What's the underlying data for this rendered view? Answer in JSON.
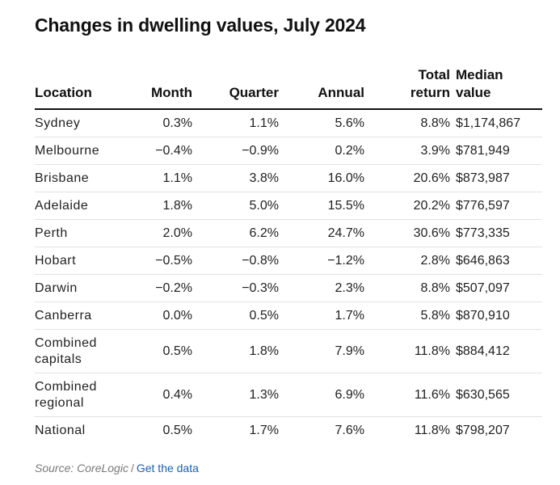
{
  "title": "Changes in dwelling values, July 2024",
  "headers": {
    "location": "Location",
    "month": "Month",
    "quarter": "Quarter",
    "annual": "Annual",
    "total_return": [
      "Total",
      "return"
    ],
    "median_value": [
      "Median",
      "value"
    ]
  },
  "rows": [
    {
      "location": "Sydney",
      "month": "0.3%",
      "quarter": "1.1%",
      "annual": "5.6%",
      "total_return": "8.8%",
      "median_value": "$1,174,867"
    },
    {
      "location": "Melbourne",
      "month": "−0.4%",
      "quarter": "−0.9%",
      "annual": "0.2%",
      "total_return": "3.9%",
      "median_value": "$781,949"
    },
    {
      "location": "Brisbane",
      "month": "1.1%",
      "quarter": "3.8%",
      "annual": "16.0%",
      "total_return": "20.6%",
      "median_value": "$873,987"
    },
    {
      "location": "Adelaide",
      "month": "1.8%",
      "quarter": "5.0%",
      "annual": "15.5%",
      "total_return": "20.2%",
      "median_value": "$776,597"
    },
    {
      "location": "Perth",
      "month": "2.0%",
      "quarter": "6.2%",
      "annual": "24.7%",
      "total_return": "30.6%",
      "median_value": "$773,335"
    },
    {
      "location": "Hobart",
      "month": "−0.5%",
      "quarter": "−0.8%",
      "annual": "−1.2%",
      "total_return": "2.8%",
      "median_value": "$646,863"
    },
    {
      "location": "Darwin",
      "month": "−0.2%",
      "quarter": "−0.3%",
      "annual": "2.3%",
      "total_return": "8.8%",
      "median_value": "$507,097"
    },
    {
      "location": "Canberra",
      "month": "0.0%",
      "quarter": "0.5%",
      "annual": "1.7%",
      "total_return": "5.8%",
      "median_value": "$870,910"
    },
    {
      "location": [
        "Combined",
        "capitals"
      ],
      "month": "0.5%",
      "quarter": "1.8%",
      "annual": "7.9%",
      "total_return": "11.8%",
      "median_value": "$884,412"
    },
    {
      "location": [
        "Combined",
        "regional"
      ],
      "month": "0.4%",
      "quarter": "1.3%",
      "annual": "6.9%",
      "total_return": "11.6%",
      "median_value": "$630,565"
    },
    {
      "location": "National",
      "month": "0.5%",
      "quarter": "1.7%",
      "annual": "7.6%",
      "total_return": "11.8%",
      "median_value": "$798,207"
    }
  ],
  "footer": {
    "source": "Source: CoreLogic",
    "separator": "/",
    "link": "Get the data"
  },
  "colors": {
    "link": "#1a5fb4",
    "source_text": "#7a7a7a",
    "rule": "#111111",
    "row_divider": "#e2e2e2"
  }
}
